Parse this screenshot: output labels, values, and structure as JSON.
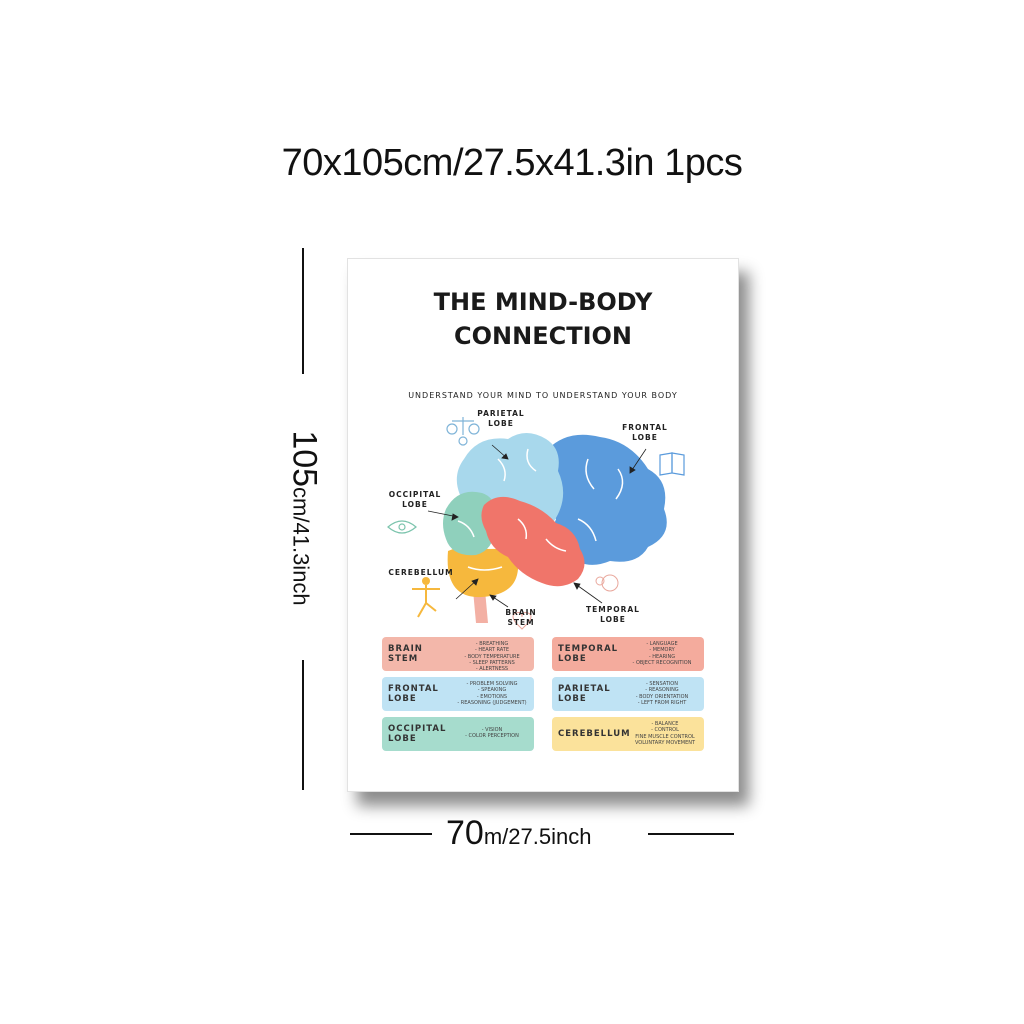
{
  "headline": "70x105cm/27.5x41.3in 1pcs",
  "poster": {
    "title_line1": "THE MIND-BODY",
    "title_line2": "CONNECTION",
    "subtitle": "UNDERSTAND YOUR MIND TO UNDERSTAND YOUR BODY",
    "labels": {
      "parietal": "PARIETAL\nLOBE",
      "frontal": "FRONTAL\nLOBE",
      "occipital": "OCCIPITAL\nLOBE",
      "cerebellum": "CEREBELLUM",
      "brain_stem": "BRAIN\nSTEM",
      "temporal": "TEMPORAL\nLOBE"
    },
    "colors": {
      "parietal": "#a8d8ec",
      "frontal": "#5b9bdc",
      "occipital": "#8fd0bc",
      "cerebellum": "#f6b83d",
      "temporal": "#f0756a",
      "stem": "#f3b0a4"
    },
    "cards": [
      {
        "name": "BRAIN\nSTEM",
        "color": "#f3b7aa",
        "items": [
          "- BREATHING",
          "- HEART RATE",
          "- BODY TEMPERATURE",
          "- SLEEP PATTERNS",
          "- ALERTNESS"
        ]
      },
      {
        "name": "TEMPORAL\nLOBE",
        "color": "#f4ab9d",
        "items": [
          "- LANGUAGE",
          "- MEMORY",
          "- HEARING",
          "- OBJECT RECOGNITION"
        ]
      },
      {
        "name": "FRONTAL\nLOBE",
        "color": "#bfe3f4",
        "items": [
          "- PROBLEM SOLVING",
          "- SPEAKING",
          "- EMOTIONS",
          "- REASONING (JUDGEMENT)"
        ]
      },
      {
        "name": "PARIETAL\nLOBE",
        "color": "#bfe3f4",
        "items": [
          "- SENSATION",
          "- REASONING",
          "- BODY ORIENTATION",
          "- LEFT FROM RIGHT"
        ]
      },
      {
        "name": "OCCIPITAL\nLOBE",
        "color": "#a6dccd",
        "items": [
          "- VISION",
          "- COLOR PERCEPTION"
        ]
      },
      {
        "name": "CEREBELLUM",
        "color": "#fbe29b",
        "items": [
          "- BALANCE",
          "- CONTROL",
          "FINE MUSCLE CONTROL",
          "VOLUNTARY MOVEMENT"
        ]
      }
    ]
  },
  "dimensions": {
    "height_value": "105",
    "height_unit": "cm/41.3inch",
    "width_value": "70",
    "width_unit": "m/27.5inch"
  }
}
